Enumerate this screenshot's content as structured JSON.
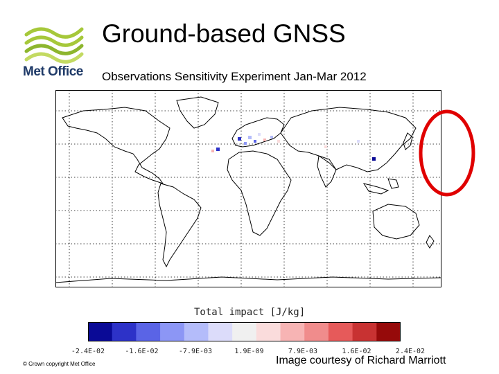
{
  "brand": {
    "name": "Met Office",
    "logo_colors": [
      "#a6c83a",
      "#8db62e",
      "#c3da62"
    ]
  },
  "header": {
    "title": "Ground-based GNSS",
    "subtitle": "Observations Sensitivity Experiment Jan-Mar 2012"
  },
  "legend": {
    "title": "Total impact [J/kg]",
    "colors": [
      "#0a0a96",
      "#2d32c8",
      "#5a64e6",
      "#8c96f5",
      "#b4bcfa",
      "#dcdcfa",
      "#f0f0f0",
      "#fadcdc",
      "#f7b4b4",
      "#f08c8c",
      "#e65a5a",
      "#c83232",
      "#960a0a"
    ],
    "tick_labels": [
      "-2.4E-02",
      "-1.6E-02",
      "-7.9E-03",
      "1.9E-09",
      "7.9E-03",
      "1.6E-02",
      "2.4E-02"
    ]
  },
  "highlight": {
    "color": "#e00000"
  },
  "footer": {
    "copyright": "© Crown copyright   Met Office",
    "courtesy": "Image courtesy of Richard Marriott"
  }
}
